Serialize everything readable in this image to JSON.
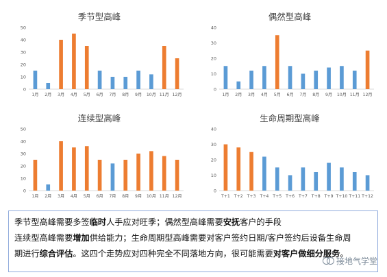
{
  "colors": {
    "blue": "#5b9bd5",
    "orange": "#ed7d31",
    "axis": "#d9d9d9",
    "text": "#595959"
  },
  "chart_data": [
    {
      "type": "bar",
      "title": "季节型高峰",
      "categories": [
        "1月",
        "2月",
        "3月",
        "4月",
        "5月",
        "6月",
        "7月",
        "8月",
        "9月",
        "10月",
        "11月",
        "12月"
      ],
      "values": [
        15,
        5,
        40,
        45,
        35,
        15,
        10,
        10,
        15,
        12,
        35,
        25
      ],
      "highlight": [
        false,
        false,
        true,
        true,
        true,
        false,
        false,
        false,
        false,
        false,
        true,
        true
      ],
      "ylim": [
        0,
        50
      ],
      "yticks": [
        "0",
        "10",
        "20",
        "30",
        "40",
        "50"
      ],
      "grid": false
    },
    {
      "type": "bar",
      "title": "偶然型高峰",
      "categories": [
        "1月",
        "2月",
        "3月",
        "4月",
        "5月",
        "6月",
        "7月",
        "8月",
        "9月",
        "10月",
        "11月",
        "12月"
      ],
      "values": [
        15,
        5,
        12,
        15,
        35,
        15,
        10,
        12,
        14,
        15,
        12,
        25
      ],
      "highlight": [
        false,
        false,
        false,
        false,
        true,
        false,
        false,
        false,
        false,
        false,
        false,
        true
      ],
      "ylim": [
        0,
        40
      ],
      "yticks": [
        "0",
        "10",
        "20",
        "30",
        "40"
      ],
      "grid": false
    },
    {
      "type": "bar",
      "title": "连续型高峰",
      "categories": [
        "1月",
        "2月",
        "3月",
        "4月",
        "5月",
        "6月",
        "7月",
        "8月",
        "9月",
        "10月",
        "11月",
        "12月"
      ],
      "values": [
        25,
        5,
        40,
        35,
        36,
        25,
        22,
        25,
        30,
        32,
        28,
        25
      ],
      "highlight": [
        true,
        false,
        true,
        true,
        true,
        true,
        false,
        true,
        true,
        true,
        true,
        true
      ],
      "ylim": [
        0,
        50
      ],
      "yticks": [
        "0",
        "10",
        "20",
        "30",
        "40",
        "50"
      ],
      "grid": false
    },
    {
      "type": "bar",
      "title": "生命周期型高峰",
      "categories": [
        "T+1",
        "T+2",
        "T+3",
        "T+4",
        "T+5",
        "T+6",
        "T+7",
        "T+8",
        "T+9",
        "T+10",
        "T+11",
        "T+12"
      ],
      "values": [
        30,
        28,
        25,
        22,
        15,
        10,
        15,
        12,
        18,
        15,
        12,
        10
      ],
      "highlight": [
        true,
        true,
        true,
        false,
        false,
        false,
        false,
        false,
        false,
        false,
        false,
        false
      ],
      "ylim": [
        0,
        40
      ],
      "yticks": [
        "0",
        "10",
        "20",
        "30",
        "40"
      ],
      "grid": false
    }
  ],
  "caption": {
    "line1": [
      {
        "t": "季节型高峰需要多签",
        "b": false
      },
      {
        "t": "临时",
        "b": true
      },
      {
        "t": "人手应对旺季；偶然型高峰需要",
        "b": false
      },
      {
        "t": "安抚",
        "b": true
      },
      {
        "t": "客户的手段",
        "b": false
      }
    ],
    "line2": [
      {
        "t": "连续型高峰需要",
        "b": false
      },
      {
        "t": "增加",
        "b": true
      },
      {
        "t": "供给能力；生命周期型高峰需要对客户签约日期/客户签约后设备生命周",
        "b": false
      }
    ],
    "line3": [
      {
        "t": "期进行",
        "b": false
      },
      {
        "t": "综合评估",
        "b": true
      },
      {
        "t": "。这四个走势应对四种完全不同落地方向，很可能需要",
        "b": false
      },
      {
        "t": "对客户",
        "b": true
      },
      {
        "t": "做细分服务",
        "b": true
      },
      {
        "t": "。",
        "b": false
      }
    ]
  },
  "watermark": {
    "text": "接地气学堂"
  }
}
